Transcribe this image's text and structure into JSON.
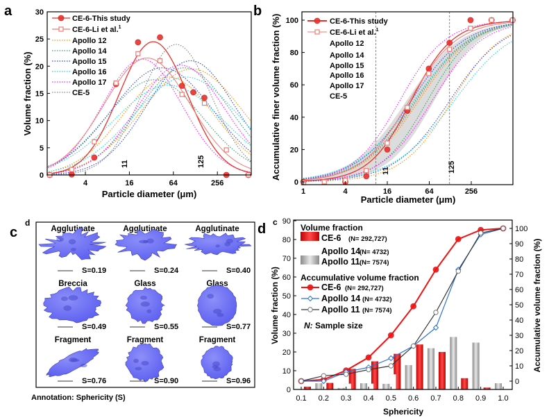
{
  "panel_labels": {
    "a": "a",
    "b": "b",
    "c": "c",
    "c_inner": "d",
    "d": "d",
    "d_inner": "c"
  },
  "chart_data": [
    {
      "id": "a",
      "type": "line",
      "title": "",
      "xlabel": "Particle diameter (μm)",
      "ylabel": "Volume fraction (%)",
      "xscale": "log2",
      "xlim": [
        1.2,
        750
      ],
      "ylim": [
        0,
        30
      ],
      "xticks": [
        "4",
        "16",
        "64",
        "256"
      ],
      "yticks": [
        "0",
        "5",
        "10",
        "15",
        "20",
        "25",
        "30"
      ],
      "annotations": [
        "11",
        "125"
      ],
      "legend_position": "top-left",
      "series": [
        {
          "name": "CE-6-This study",
          "sup": "",
          "color": "#e8302a",
          "marker": "circle",
          "points": [
            [
              1.3,
              0
            ],
            [
              2.6,
              0.1
            ],
            [
              5.3,
              3.2
            ],
            [
              10.5,
              16.7
            ],
            [
              21,
              24.4
            ],
            [
              42,
              25.3
            ],
            [
              84,
              16.4
            ],
            [
              120,
              15.2
            ],
            [
              170,
              14.2
            ],
            [
              340,
              0
            ],
            [
              680,
              0
            ]
          ],
          "fit": {
            "peak_um": 34,
            "peak": 24.5,
            "sigma_log2": 1.55
          }
        },
        {
          "name": "CE-6-Li et al.",
          "sup": "1",
          "color": "#f07a72",
          "marker": "square",
          "points": [
            [
              1.3,
              0
            ],
            [
              2.6,
              1.0
            ],
            [
              5.3,
              6.1
            ],
            [
              10.5,
              16.9
            ],
            [
              21,
              22.3
            ],
            [
              42,
              21.0
            ],
            [
              84,
              14.8
            ],
            [
              170,
              13.2
            ],
            [
              340,
              4.6
            ],
            [
              680,
              0
            ]
          ],
          "fit": {
            "peak_um": 28,
            "peak": 21.5,
            "sigma_log2": 1.95
          }
        },
        {
          "name": "Apollo 12",
          "color": "#ff8c00",
          "curves": [
            {
              "peak_um": 115,
              "peak": 19.5,
              "sigma_log2": 2.3
            },
            {
              "peak_um": 55,
              "peak": 18.0,
              "sigma_log2": 2.1
            }
          ]
        },
        {
          "name": "Apollo 14",
          "color": "#2e9e6b",
          "curves": [
            {
              "peak_um": 90,
              "peak": 19.7,
              "sigma_log2": 2.1
            },
            {
              "peak_um": 35,
              "peak": 17.5,
              "sigma_log2": 2.2
            }
          ]
        },
        {
          "name": "Apollo 15",
          "color": "#1f3fff",
          "curves": [
            {
              "peak_um": 110,
              "peak": 21.0,
              "sigma_log2": 2.0
            },
            {
              "peak_um": 45,
              "peak": 19.7,
              "sigma_log2": 2.3
            }
          ]
        },
        {
          "name": "Apollo 16",
          "color": "#19d8e0",
          "curves": [
            {
              "peak_um": 95,
              "peak": 18.0,
              "sigma_log2": 2.4
            },
            {
              "peak_um": 55,
              "peak": 16.5,
              "sigma_log2": 2.5
            }
          ]
        },
        {
          "name": "Apollo 17",
          "color": "#ff1aff",
          "curves": [
            {
              "peak_um": 24,
              "peak": 21.3,
              "sigma_log2": 1.8
            },
            {
              "peak_um": 80,
              "peak": 20.2,
              "sigma_log2": 2.0
            }
          ]
        },
        {
          "name": "CE-5",
          "color": "#808080",
          "curves": [
            {
              "peak_um": 70,
              "peak": 24.0,
              "sigma_log2": 1.6
            }
          ]
        }
      ]
    },
    {
      "id": "b",
      "type": "line",
      "title": "",
      "xlabel": "Particle diameter (μm)",
      "ylabel": "Accumulative finer volume fraction (%)",
      "xscale": "log2",
      "xlim": [
        1,
        1024
      ],
      "ylim": [
        -2,
        105
      ],
      "xticks": [
        "1",
        "4",
        "16",
        "64",
        "256"
      ],
      "yticks": [
        "0",
        "20",
        "40",
        "60",
        "80",
        "100"
      ],
      "annotations": [
        "11",
        "125"
      ],
      "reference_lines_um": [
        11,
        125
      ],
      "legend_position": "top-left",
      "band": {
        "lower_d50_um": 75,
        "lower_slope": 1.1,
        "upper_d50_um": 30,
        "upper_slope": 1.3,
        "color": "#d6d6d6"
      },
      "series": [
        {
          "name": "CE-6-This study",
          "sup": "",
          "color": "#e8302a",
          "marker": "circle",
          "points": [
            [
              1,
              0
            ],
            [
              4,
              0
            ],
            [
              8,
              3.5
            ],
            [
              16,
              20
            ],
            [
              31,
              44
            ],
            [
              63,
              70
            ],
            [
              125,
              86
            ],
            [
              250,
              100
            ],
            [
              500,
              100
            ],
            [
              1000,
              100
            ]
          ],
          "fit": {
            "d50_um": 35,
            "slope": 1.0
          }
        },
        {
          "name": "CE-6-Li et al.",
          "sup": "1",
          "color": "#f07a72",
          "marker": "square",
          "points": [
            [
              1,
              -0.5
            ],
            [
              2,
              0
            ],
            [
              4,
              1
            ],
            [
              8,
              7
            ],
            [
              16,
              24
            ],
            [
              31,
              46
            ],
            [
              63,
              67
            ],
            [
              125,
              82
            ],
            [
              250,
              95
            ],
            [
              500,
              100
            ],
            [
              1000,
              100
            ]
          ],
          "fit": {
            "d50_um": 33,
            "slope": 1.15
          }
        },
        {
          "name": "Apollo 12",
          "color": "#ff8c00",
          "curves": [
            {
              "d50_um": 135,
              "slope": 1.2
            },
            {
              "d50_um": 45,
              "slope": 1.3
            }
          ]
        },
        {
          "name": "Apollo 14",
          "color": "#2e9e6b",
          "curves": [
            {
              "d50_um": 60,
              "slope": 1.1
            },
            {
              "d50_um": 40,
              "slope": 1.3
            }
          ]
        },
        {
          "name": "Apollo 15",
          "color": "#1f3fff",
          "curves": [
            {
              "d50_um": 125,
              "slope": 1.3
            },
            {
              "d50_um": 35,
              "slope": 1.3
            }
          ]
        },
        {
          "name": "Apollo 16",
          "color": "#19d8e0",
          "curves": [
            {
              "d50_um": 145,
              "slope": 1.45
            },
            {
              "d50_um": 38,
              "slope": 1.4
            }
          ]
        },
        {
          "name": "Apollo 17",
          "color": "#ff1aff",
          "curves": [
            {
              "d50_um": 24,
              "slope": 1.1
            },
            {
              "d50_um": 70,
              "slope": 1.2
            }
          ]
        },
        {
          "name": "CE-5",
          "color": "#808080",
          "curves": [
            {
              "d50_um": 42,
              "slope": 1.3
            }
          ]
        }
      ]
    },
    {
      "id": "d",
      "type": "bar",
      "title": "",
      "xlabel": "Sphericity",
      "ylabel": "Volume fraction (%)",
      "y2label": "Accumulative volume fraction (%)",
      "categories": [
        "0.1",
        "0.2",
        "0.3",
        "0.4",
        "0.5",
        "0.6",
        "0.7",
        "0.8",
        "0.9",
        "1.0"
      ],
      "ylim": [
        0,
        90
      ],
      "y2lim": [
        -5.5,
        105
      ],
      "yticks": [
        "0",
        "10",
        "20",
        "30",
        "40",
        "50",
        "60",
        "70",
        "80",
        "90"
      ],
      "y2ticks": [
        "0",
        "10",
        "20",
        "30",
        "40",
        "50",
        "60",
        "70",
        "80",
        "90",
        "100"
      ],
      "legend": {
        "volume_title": "Volume fraction",
        "accum_title": "Accumulative volume fraction",
        "note_n": "N:",
        "note_text": " Sample size"
      },
      "bar_series": [
        {
          "name": "CE-6",
          "n_label": "(N= 292,727)",
          "color": "#e41a1a",
          "values": [
            1.5,
            3.5,
            11,
            15,
            19,
            24,
            20,
            6,
            1,
            0
          ]
        },
        {
          "name": "Apollo 14",
          "n_label": "(N= 4732)",
          "color": "#ffffff",
          "values": [
            0,
            0,
            3,
            3,
            8,
            0,
            0,
            0,
            0,
            0
          ]
        },
        {
          "name": "Apollo 11",
          "n_label": "(N= 7574)",
          "color": "#a8a8a8",
          "values": [
            0,
            3.3,
            0.8,
            3.3,
            3,
            13,
            22,
            28,
            25,
            3.3
          ]
        }
      ],
      "line_series": [
        {
          "name": "CE-6",
          "n_label": "(N= 292,727)",
          "color": "#f01010",
          "marker": "circle",
          "values": [
            0,
            1,
            7,
            15.5,
            30,
            49,
            73,
            93,
            99,
            100
          ]
        },
        {
          "name": "Apollo 14",
          "n_label": "(N= 4732)",
          "color": "#2b6fd8",
          "marker": "diamond",
          "values": [
            0,
            0,
            6,
            9,
            15,
            23,
            35,
            73,
            96,
            100
          ]
        },
        {
          "name": "Apollo 11",
          "n_label": "(N= 7574)",
          "color": "#333333",
          "marker": "open-circle",
          "values": [
            0,
            3.5,
            4.5,
            7.5,
            10,
            23,
            45,
            72,
            97,
            100
          ]
        }
      ]
    }
  ],
  "particles": {
    "annotation": "Annotation:  Sphericity (S)",
    "color": "#5c5ff0",
    "items": [
      {
        "type": "Agglutinate",
        "s": "S=0.19"
      },
      {
        "type": "Agglutinate",
        "s": "S=0.24"
      },
      {
        "type": "Agglutinate",
        "s": "S=0.40"
      },
      {
        "type": "Breccia",
        "s": "S=0.49"
      },
      {
        "type": "Glass",
        "s": "S=0.55"
      },
      {
        "type": "Glass",
        "s": "S=0.77"
      },
      {
        "type": "Fragment",
        "s": "S=0.76"
      },
      {
        "type": "Fragment",
        "s": "S=0.90"
      },
      {
        "type": "Fragment",
        "s": "S=0.96"
      }
    ]
  }
}
